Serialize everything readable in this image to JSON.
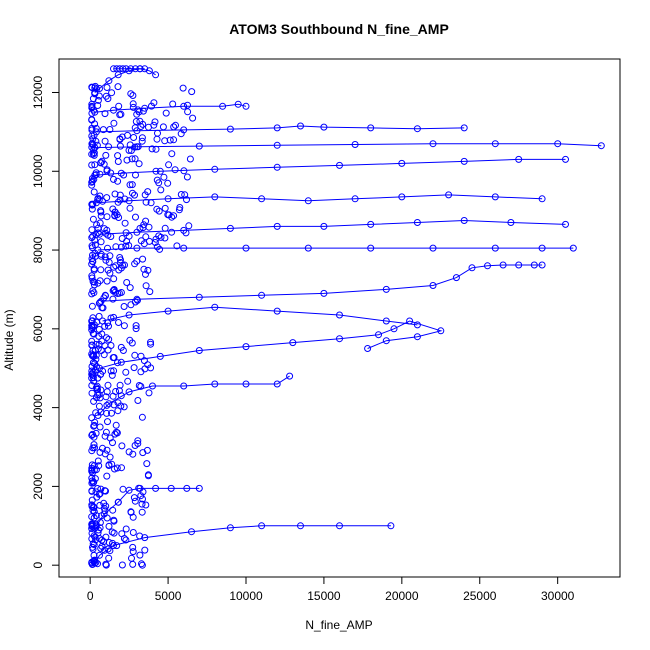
{
  "chart_data": {
    "type": "scatter",
    "title": "ATOM3 Southbound N_fine_AMP",
    "xlabel": "N_fine_AMP",
    "ylabel": "Altitude (m)",
    "xlim": [
      -2000,
      34000
    ],
    "ylim": [
      -300,
      12850
    ],
    "xticks": [
      0,
      5000,
      10000,
      15000,
      20000,
      25000,
      30000
    ],
    "yticks": [
      0,
      2000,
      4000,
      6000,
      8000,
      10000,
      12000
    ],
    "grid": false,
    "series_color": "#0000ff",
    "marker": "open-circle",
    "connected_by_lines": true,
    "series": [
      {
        "x": [
          300,
          600,
          1500,
          3500,
          6500,
          9000,
          11000,
          13500,
          16000,
          19300
        ],
        "y": [
          50,
          250,
          500,
          700,
          850,
          950,
          1000,
          1000,
          1000,
          1000
        ],
        "_segment": "low-altitude excursion"
      },
      {
        "x": [
          400,
          900,
          1800,
          2500,
          3200,
          4200,
          5200,
          6200,
          7000
        ],
        "y": [
          1000,
          1300,
          1600,
          1900,
          1950,
          1950,
          1950,
          1950,
          1950
        ]
      },
      {
        "x": [
          500,
          1200,
          2500,
          4000,
          6000,
          8000,
          10000,
          12000,
          12800
        ],
        "y": [
          3800,
          4100,
          4400,
          4550,
          4550,
          4600,
          4600,
          4600,
          4800
        ]
      },
      {
        "x": [
          600,
          2000,
          4500,
          7000,
          10000,
          13000,
          16000,
          18500,
          19500,
          20500,
          22500,
          21000,
          19000,
          17800
        ],
        "y": [
          5000,
          5150,
          5300,
          5450,
          5550,
          5650,
          5750,
          5850,
          6000,
          6200,
          5950,
          5800,
          5700,
          5500
        ]
      },
      {
        "x": [
          800,
          2500,
          5000,
          8000,
          12000,
          16000,
          19000,
          21000
        ],
        "y": [
          6200,
          6350,
          6450,
          6550,
          6450,
          6350,
          6200,
          6100
        ]
      },
      {
        "x": [
          700,
          3000,
          7000,
          11000,
          15000,
          19000,
          22000,
          23500,
          24500,
          25500,
          26500,
          27500,
          28500,
          29000
        ],
        "y": [
          6700,
          6750,
          6800,
          6850,
          6900,
          7000,
          7100,
          7300,
          7550,
          7600,
          7620,
          7620,
          7620,
          7620
        ]
      },
      {
        "x": [
          500,
          3000,
          6000,
          10000,
          14000,
          18000,
          22000,
          26000,
          29000,
          31000
        ],
        "y": [
          8000,
          8050,
          8050,
          8050,
          8050,
          8050,
          8050,
          8050,
          8050,
          8050
        ]
      },
      {
        "x": [
          600,
          3000,
          6000,
          9000,
          12000,
          15000,
          18000,
          21000,
          24000,
          27000,
          30500
        ],
        "y": [
          8400,
          8450,
          8500,
          8550,
          8600,
          8600,
          8650,
          8700,
          8750,
          8700,
          8650
        ]
      },
      {
        "x": [
          400,
          2500,
          5000,
          8000,
          11000,
          14000,
          17000,
          20000,
          23000,
          26000,
          29000
        ],
        "y": [
          9200,
          9250,
          9300,
          9350,
          9300,
          9250,
          9300,
          9350,
          9400,
          9350,
          9300
        ]
      },
      {
        "x": [
          300,
          2000,
          4500,
          8000,
          12000,
          16000,
          20000,
          24000,
          27500,
          30500
        ],
        "y": [
          9900,
          9950,
          10000,
          10050,
          10100,
          10150,
          10200,
          10250,
          10300,
          10300
        ]
      },
      {
        "x": [
          300,
          3000,
          7000,
          12000,
          17000,
          22000,
          26000,
          30000,
          32800
        ],
        "y": [
          10600,
          10620,
          10640,
          10660,
          10680,
          10700,
          10700,
          10700,
          10650
        ]
      },
      {
        "x": [
          400,
          3000,
          6000,
          9000,
          12000,
          13500,
          15000,
          18000,
          21000,
          24000
        ],
        "y": [
          11000,
          11030,
          11050,
          11070,
          11100,
          11150,
          11120,
          11100,
          11080,
          11100
        ]
      },
      {
        "x": [
          300,
          1500,
          3500,
          6000,
          8500,
          9500,
          10000
        ],
        "y": [
          11500,
          11550,
          11600,
          11650,
          11650,
          11700,
          11650
        ]
      },
      {
        "x": [
          300,
          600,
          1200,
          1800,
          2500,
          3200,
          3800,
          4200
        ],
        "y": [
          12000,
          12100,
          12300,
          12450,
          12550,
          12600,
          12550,
          12450
        ]
      },
      {
        "x": [
          1500,
          1700,
          1900,
          2100,
          2300,
          2600,
          2900,
          3200,
          3500
        ],
        "y": [
          12600,
          12600,
          12600,
          12600,
          12600,
          12600,
          12600,
          12600,
          12600
        ]
      }
    ]
  }
}
